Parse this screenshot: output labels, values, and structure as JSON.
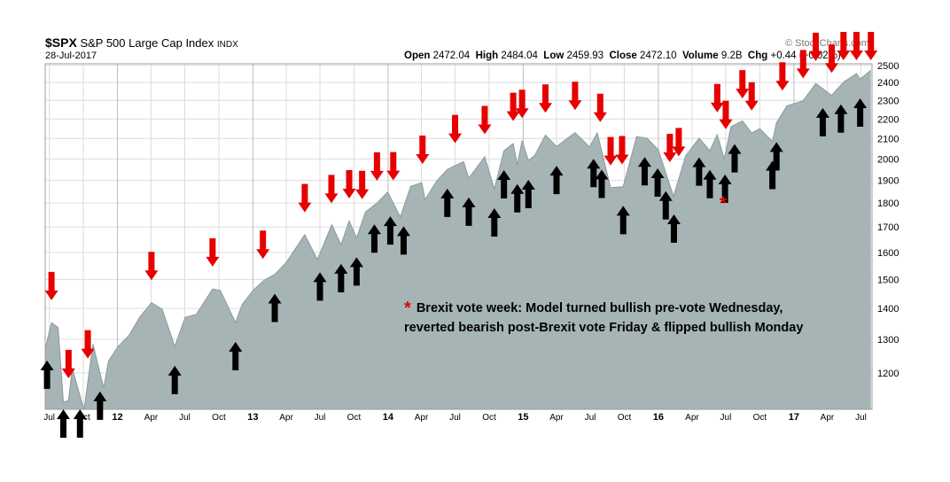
{
  "header": {
    "symbol": "$SPX",
    "name": "S&P 500 Large Cap Index",
    "exchange": "INDX",
    "date": "28-Jul-2017",
    "brand": "© StockCharts.com",
    "open_label": "Open",
    "open": "2472.04",
    "high_label": "High",
    "high": "2484.04",
    "low_label": "Low",
    "low": "2459.93",
    "close_label": "Close",
    "close": "2472.10",
    "volume_label": "Volume",
    "volume": "9.2B",
    "chg_label": "Chg",
    "chg": "+0.44 (+0.02%)"
  },
  "annotation": {
    "star": "*",
    "line1": "Brexit vote week: Model turned bullish pre-vote Wednesday,",
    "line2": "reverted bearish post-Brexit vote Friday & flipped bullish Monday"
  },
  "colors": {
    "area_fill": "#a6b4b5",
    "area_line": "#8a9a9b",
    "grid": "#dcdcdc",
    "sell_arrow": "#e60000",
    "buy_arrow": "#000000",
    "star": "#e00000"
  },
  "chart_data": {
    "type": "area",
    "title": "$SPX S&P 500 Large Cap Index INDX",
    "y_scale": "log",
    "ylim": [
      1100,
      2510
    ],
    "xlim": [
      "2011-06-20",
      "2017-07-31"
    ],
    "y_ticks": [
      1200,
      1300,
      1400,
      1500,
      1600,
      1700,
      1800,
      1900,
      2000,
      2100,
      2200,
      2300,
      2400,
      2500
    ],
    "x_ticks": [
      {
        "date": "2011-07-01",
        "label": "Jul"
      },
      {
        "date": "2011-10-01",
        "label": "Oct"
      },
      {
        "date": "2012-01-01",
        "label": "12"
      },
      {
        "date": "2012-04-01",
        "label": "Apr"
      },
      {
        "date": "2012-07-01",
        "label": "Jul"
      },
      {
        "date": "2012-10-01",
        "label": "Oct"
      },
      {
        "date": "2013-01-01",
        "label": "13"
      },
      {
        "date": "2013-04-01",
        "label": "Apr"
      },
      {
        "date": "2013-07-01",
        "label": "Jul"
      },
      {
        "date": "2013-10-01",
        "label": "Oct"
      },
      {
        "date": "2014-01-01",
        "label": "14"
      },
      {
        "date": "2014-04-01",
        "label": "Apr"
      },
      {
        "date": "2014-07-01",
        "label": "Jul"
      },
      {
        "date": "2014-10-01",
        "label": "Oct"
      },
      {
        "date": "2015-01-01",
        "label": "15"
      },
      {
        "date": "2015-04-01",
        "label": "Apr"
      },
      {
        "date": "2015-07-01",
        "label": "Jul"
      },
      {
        "date": "2015-10-01",
        "label": "Oct"
      },
      {
        "date": "2016-01-01",
        "label": "16"
      },
      {
        "date": "2016-04-01",
        "label": "Apr"
      },
      {
        "date": "2016-07-01",
        "label": "Jul"
      },
      {
        "date": "2016-10-01",
        "label": "Oct"
      },
      {
        "date": "2017-01-01",
        "label": "17"
      },
      {
        "date": "2017-04-01",
        "label": "Apr"
      },
      {
        "date": "2017-07-01",
        "label": "Jul"
      }
    ],
    "series": [
      {
        "x": [
          "2011-06-20",
          "2011-07-07",
          "2011-07-25",
          "2011-08-08",
          "2011-08-22",
          "2011-09-01",
          "2011-09-22",
          "2011-10-03",
          "2011-10-27",
          "2011-11-25",
          "2011-12-08",
          "2012-01-02",
          "2012-02-01",
          "2012-03-01",
          "2012-04-02",
          "2012-05-01",
          "2012-06-04",
          "2012-07-02",
          "2012-08-01",
          "2012-09-14",
          "2012-10-05",
          "2012-11-15",
          "2012-12-03",
          "2013-01-02",
          "2013-02-01",
          "2013-03-01",
          "2013-04-01",
          "2013-05-21",
          "2013-06-24",
          "2013-08-02",
          "2013-08-27",
          "2013-09-18",
          "2013-10-08",
          "2013-11-01",
          "2013-12-02",
          "2013-12-31",
          "2014-02-03",
          "2014-03-03",
          "2014-04-02",
          "2014-04-11",
          "2014-05-12",
          "2014-06-10",
          "2014-07-24",
          "2014-08-07",
          "2014-09-19",
          "2014-10-15",
          "2014-11-10",
          "2014-12-05",
          "2014-12-16",
          "2014-12-29",
          "2015-01-15",
          "2015-02-02",
          "2015-03-02",
          "2015-04-01",
          "2015-05-21",
          "2015-06-29",
          "2015-07-20",
          "2015-08-25",
          "2015-09-28",
          "2015-11-03",
          "2015-12-01",
          "2016-01-01",
          "2016-02-11",
          "2016-03-15",
          "2016-04-20",
          "2016-05-19",
          "2016-06-08",
          "2016-06-27",
          "2016-07-15",
          "2016-08-15",
          "2016-09-09",
          "2016-10-01",
          "2016-11-04",
          "2016-11-15",
          "2016-12-13",
          "2017-01-26",
          "2017-03-01",
          "2017-04-13",
          "2017-05-15",
          "2017-06-19",
          "2017-06-29",
          "2017-07-28"
        ],
        "y": [
          1270,
          1353,
          1337,
          1119,
          1123,
          1214,
          1136,
          1100,
          1285,
          1158,
          1234,
          1277,
          1312,
          1370,
          1419,
          1397,
          1278,
          1370,
          1380,
          1466,
          1461,
          1353,
          1413,
          1462,
          1498,
          1518,
          1562,
          1669,
          1573,
          1709,
          1630,
          1725,
          1656,
          1762,
          1800,
          1848,
          1741,
          1873,
          1890,
          1815,
          1897,
          1951,
          1987,
          1910,
          2011,
          1862,
          2039,
          2075,
          1972,
          2090,
          1992,
          2020,
          2117,
          2060,
          2130,
          2058,
          2128,
          1867,
          1872,
          2109,
          2102,
          2044,
          1829,
          2015,
          2102,
          2040,
          2119,
          2000,
          2160,
          2190,
          2128,
          2150,
          2085,
          2180,
          2270,
          2298,
          2395,
          2328,
          2402,
          2453,
          2420,
          2472
        ]
      }
    ],
    "signals": {
      "sell": [
        "2011-07-07",
        "2011-08-22",
        "2011-10-13",
        "2012-04-02",
        "2012-09-14",
        "2013-01-28",
        "2013-05-21",
        "2013-08-01",
        "2013-09-18",
        "2013-10-23",
        "2013-12-02",
        "2014-01-15",
        "2014-04-04",
        "2014-07-01",
        "2014-09-19",
        "2014-12-05",
        "2014-12-29",
        "2015-03-02",
        "2015-05-21",
        "2015-07-28",
        "2015-08-25",
        "2015-09-25",
        "2016-02-01",
        "2016-02-25",
        "2016-06-08",
        "2016-07-01",
        "2016-08-15",
        "2016-09-09",
        "2016-12-01",
        "2017-01-26",
        "2017-03-01",
        "2017-04-13",
        "2017-05-15",
        "2017-06-19",
        "2017-07-28"
      ],
      "buy": [
        "2011-06-25",
        "2011-08-08",
        "2011-09-22",
        "2011-11-15",
        "2012-06-04",
        "2012-11-15",
        "2013-03-01",
        "2013-07-01",
        "2013-08-27",
        "2013-10-08",
        "2013-11-25",
        "2014-01-07",
        "2014-02-12",
        "2014-06-10",
        "2014-08-07",
        "2014-10-15",
        "2014-11-10",
        "2014-12-16",
        "2015-01-15",
        "2015-04-01",
        "2015-07-10",
        "2015-08-01",
        "2015-09-28",
        "2015-11-25",
        "2015-12-30",
        "2016-01-21",
        "2016-02-12",
        "2016-04-20",
        "2016-05-19",
        "2016-06-29",
        "2016-07-25",
        "2016-11-04",
        "2016-11-15",
        "2017-03-20",
        "2017-05-08",
        "2017-06-29"
      ]
    },
    "annotations": [
      {
        "date": "2016-06-24",
        "value": 1800,
        "text": "*",
        "color": "#e00000"
      }
    ]
  }
}
